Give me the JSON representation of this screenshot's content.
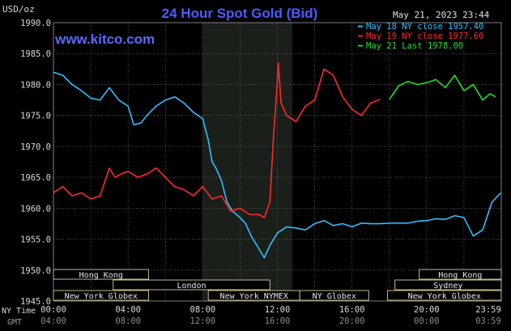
{
  "header": {
    "unit": "USD/oz",
    "title": "24 Hour Spot Gold (Bid)",
    "website": "www.kitco.com",
    "timestamp": "May 21, 2023 23:44"
  },
  "footer": {
    "ny_time_label": "NY Time",
    "gmt_label": "GMT"
  },
  "colors": {
    "background": "#000000",
    "title": "#4a5cff",
    "website": "#5a6aff",
    "grid": "#7a7a7a",
    "text": "#d8d8d8",
    "session_band": "#1a1f1a",
    "market_box_fill": "#000000",
    "market_box_stroke": "#c9b78a",
    "market_text": "#e8e8e8"
  },
  "chart_data": {
    "type": "line",
    "title": "24 Hour Spot Gold (Bid)",
    "ylabel": "USD/oz",
    "xlabel": "",
    "ylim": [
      1945.0,
      1990.0
    ],
    "xlim": [
      0,
      24
    ],
    "grid": true,
    "legend_position": "top-right",
    "y_ticks": [
      "1945.0",
      "1950.0",
      "1955.0",
      "1960.0",
      "1965.0",
      "1970.0",
      "1975.0",
      "1980.0",
      "1985.0",
      "1990.0"
    ],
    "y_tick_values": [
      1945,
      1950,
      1955,
      1960,
      1965,
      1970,
      1975,
      1980,
      1985,
      1990
    ],
    "x_ticks_ny": [
      "00:00",
      "04:00",
      "08:00",
      "12:00",
      "16:00",
      "20:00",
      "23:59"
    ],
    "x_ticks_gmt": [
      "04:00",
      "08:00",
      "12:00",
      "16:00",
      "20:00",
      "00:00",
      "03:59"
    ],
    "x_tick_hours": [
      0,
      4,
      8,
      12,
      16,
      20,
      23.98
    ],
    "highlight_hours": [
      8.0,
      12.8
    ],
    "series": [
      {
        "name": "May 18 NY close 1957.40",
        "color": "#2ec0ff",
        "x": [
          0,
          0.5,
          1.0,
          1.5,
          2.0,
          2.5,
          3.0,
          3.5,
          4.0,
          4.3,
          4.7,
          5.0,
          5.5,
          6.0,
          6.5,
          7.0,
          7.5,
          8.0,
          8.3,
          8.5,
          8.7,
          9.0,
          9.3,
          9.6,
          10.0,
          10.3,
          10.6,
          11.0,
          11.3,
          11.6,
          12.0,
          12.5,
          13.0,
          13.5,
          14.0,
          14.5,
          15.0,
          15.5,
          16.0,
          16.5,
          17.0,
          17.5,
          18.0,
          18.5,
          19.0,
          19.5,
          20.0,
          20.5,
          21.0,
          21.5,
          22.0,
          22.5,
          23.0,
          23.5,
          23.98
        ],
        "values": [
          1982.0,
          1981.5,
          1980.0,
          1979.0,
          1977.8,
          1977.5,
          1979.5,
          1977.5,
          1976.5,
          1973.5,
          1973.8,
          1975.0,
          1976.5,
          1977.5,
          1978.0,
          1977.0,
          1975.5,
          1974.5,
          1971.0,
          1967.5,
          1966.5,
          1964.5,
          1961.0,
          1959.5,
          1958.5,
          1957.5,
          1955.5,
          1953.5,
          1952.0,
          1954.0,
          1956.0,
          1957.0,
          1956.8,
          1956.5,
          1957.5,
          1958.0,
          1957.2,
          1957.5,
          1957.0,
          1957.6,
          1957.5,
          1957.5,
          1957.6,
          1957.6,
          1957.6,
          1957.9,
          1958.0,
          1958.3,
          1958.2,
          1958.8,
          1958.5,
          1955.5,
          1956.5,
          1961.0,
          1962.5
        ]
      },
      {
        "name": "May 19 NY close 1977.60",
        "color": "#ff2a2a",
        "x": [
          0,
          0.5,
          1.0,
          1.5,
          2.0,
          2.5,
          3.0,
          3.3,
          3.6,
          4.0,
          4.5,
          5.0,
          5.5,
          6.0,
          6.5,
          7.0,
          7.5,
          8.0,
          8.5,
          9.0,
          9.5,
          10.0,
          10.5,
          11.0,
          11.3,
          11.6,
          11.8,
          11.95,
          12.05,
          12.2,
          12.5,
          13.0,
          13.5,
          14.0,
          14.5,
          15.0,
          15.5,
          16.0,
          16.5,
          17.0,
          17.5
        ],
        "values": [
          1962.5,
          1963.5,
          1962.0,
          1962.5,
          1961.5,
          1962.0,
          1966.5,
          1965.0,
          1965.5,
          1966.0,
          1965.0,
          1965.5,
          1966.5,
          1965.0,
          1963.5,
          1963.0,
          1962.0,
          1963.5,
          1961.5,
          1962.0,
          1959.5,
          1960.0,
          1959.0,
          1959.0,
          1958.5,
          1961.0,
          1972.0,
          1978.0,
          1983.5,
          1977.0,
          1975.0,
          1974.0,
          1976.5,
          1977.5,
          1982.5,
          1981.5,
          1978.0,
          1976.0,
          1975.0,
          1977.0,
          1977.6
        ]
      },
      {
        "name": "May 21 Last 1978.00",
        "color": "#22e022",
        "x": [
          18.0,
          18.5,
          19.0,
          19.5,
          20.0,
          20.5,
          21.0,
          21.5,
          22.0,
          22.5,
          23.0,
          23.4,
          23.7
        ],
        "values": [
          1977.6,
          1979.8,
          1980.5,
          1980.0,
          1980.3,
          1980.8,
          1979.5,
          1981.5,
          1979.0,
          1980.0,
          1977.5,
          1978.5,
          1978.0
        ]
      }
    ],
    "market_bars": [
      {
        "name": "Hong Kong",
        "start": 0,
        "end": 5.1,
        "row": 0
      },
      {
        "name": "London",
        "start": 3.2,
        "end": 11.6,
        "row": 1
      },
      {
        "name": "New York Globex",
        "start": 0,
        "end": 5.1,
        "row": 2
      },
      {
        "name": "New York NYMEX",
        "start": 8.3,
        "end": 13.2,
        "row": 2
      },
      {
        "name": "NY Globex",
        "start": 13.2,
        "end": 16.9,
        "row": 2
      },
      {
        "name": "Hong Kong",
        "start": 19.6,
        "end": 24,
        "row": 0
      },
      {
        "name": "Sydney",
        "start": 18.3,
        "end": 24,
        "row": 1
      },
      {
        "name": "New York Globex",
        "start": 17.9,
        "end": 24,
        "row": 2
      }
    ]
  }
}
